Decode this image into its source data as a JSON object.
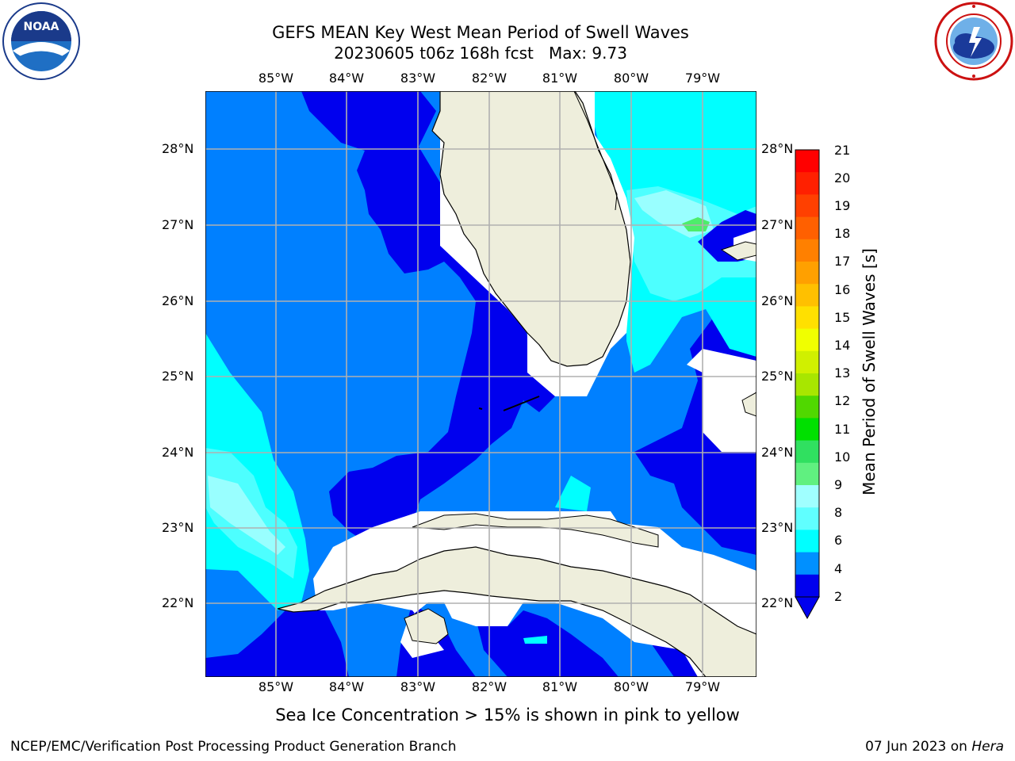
{
  "header": {
    "title_line1": "GEFS MEAN Key West Mean Period of Swell Waves",
    "title_line2": "20230605 t06z 168h fcst   Max: 9.73"
  },
  "logos": {
    "left": {
      "name": "NOAA",
      "ring_text": "NATIONAL OCEANIC AND ATMOSPHERIC ADMINISTRATION · U.S. DEPARTMENT OF COMMERCE",
      "center_text": "NOAA"
    },
    "right": {
      "name": "National Weather Service",
      "ring_text": "NATIONAL WEATHER SERVICE"
    }
  },
  "map": {
    "lon_labels": [
      "85°W",
      "84°W",
      "83°W",
      "82°W",
      "81°W",
      "80°W",
      "79°W"
    ],
    "lat_labels": [
      "28°N",
      "27°N",
      "26°N",
      "25°N",
      "24°N",
      "23°N",
      "22°N"
    ],
    "colors": {
      "water_2_4": "#0080ff",
      "water_lt2": "#0000ee",
      "water_4_6": "#00ffff",
      "water_6_8": "#4dffff",
      "water_8_9": "#99ffff",
      "water_9_10": "#4ded6b",
      "land": "#eeeedc",
      "grid": "#b0b0b0"
    }
  },
  "colorbar": {
    "title": "Mean Period of Swell Waves [s]",
    "labels": [
      "21",
      "20",
      "19",
      "18",
      "17",
      "16",
      "15",
      "14",
      "13",
      "12",
      "11",
      "10",
      "9",
      "8",
      "6",
      "4",
      "2"
    ],
    "colors": [
      "#ff0000",
      "#ff2000",
      "#ff4000",
      "#ff6000",
      "#ff8000",
      "#ffa000",
      "#ffc000",
      "#ffe000",
      "#f0ff00",
      "#d0f000",
      "#a8e600",
      "#50d800",
      "#00e000",
      "#30e060",
      "#60f080",
      "#a0ffff",
      "#60ffff",
      "#00ffff",
      "#0090ff",
      "#0000ee"
    ]
  },
  "note": "Sea Ice Concentration > 15% is shown in pink to yellow",
  "footer": {
    "left": "NCEP/EMC/Verification Post Processing Product Generation Branch",
    "date": "07 Jun 2023 on ",
    "machine": "Hera"
  }
}
